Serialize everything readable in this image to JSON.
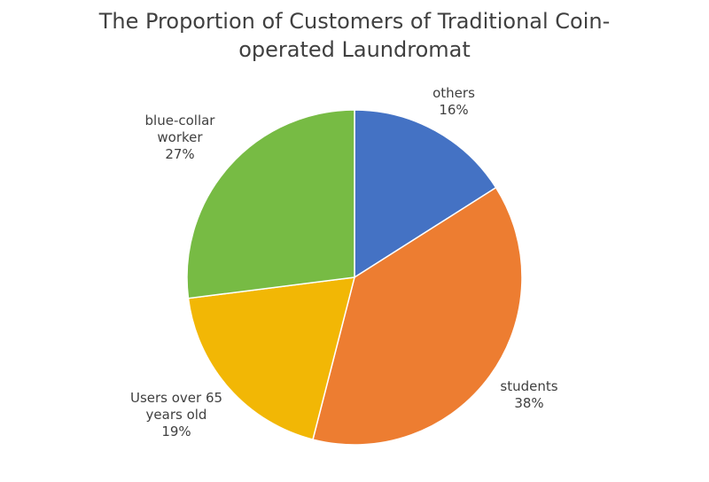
{
  "chart_data": {
    "type": "pie",
    "title_lines": [
      "The Proportion of Customers of Traditional Coin-",
      "operated Laundromat"
    ],
    "start_angle": "top",
    "direction": "clockwise",
    "slices": [
      {
        "label_lines": [
          "others"
        ],
        "value": 16,
        "pct_label": "16%",
        "color": "#4472C4"
      },
      {
        "label_lines": [
          "students"
        ],
        "value": 38,
        "pct_label": "38%",
        "color": "#ED7D31"
      },
      {
        "label_lines": [
          "Users over 65",
          "years old"
        ],
        "value": 19,
        "pct_label": "19%",
        "color": "#F2B705"
      },
      {
        "label_lines": [
          "blue-collar",
          "worker"
        ],
        "value": 27,
        "pct_label": "27%",
        "color": "#77BB44"
      }
    ]
  }
}
